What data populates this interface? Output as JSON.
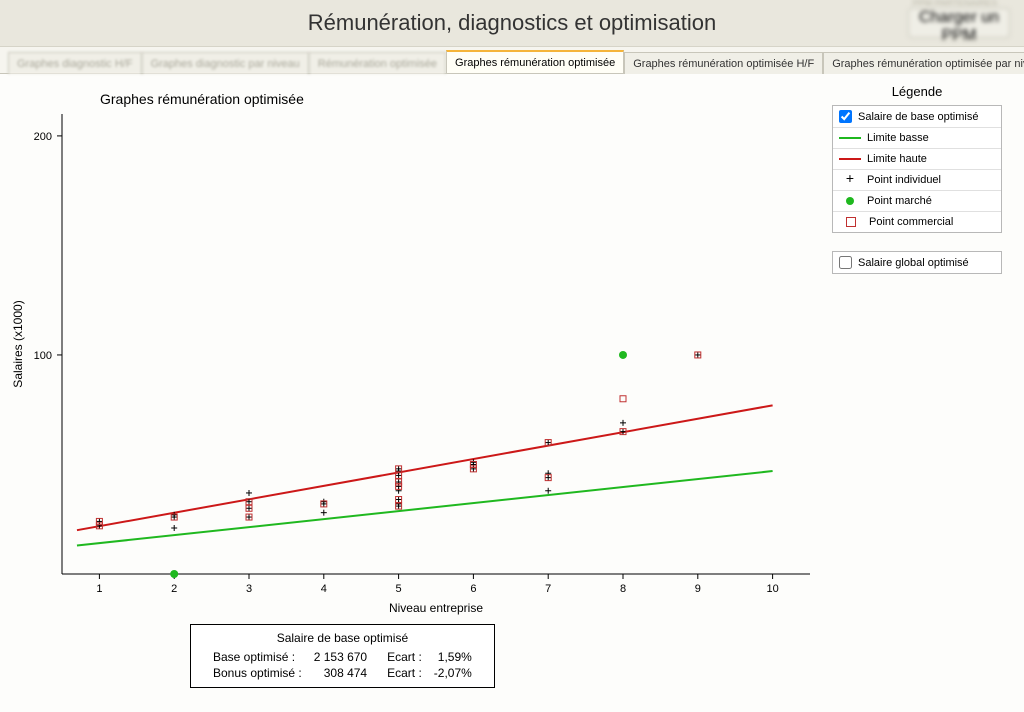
{
  "header": {
    "title": "Rémunération, diagnostics et optimisation",
    "blurred_right_label": "PPM PARTENAIRES",
    "blurred_button": "Charger un PPM"
  },
  "tabs": {
    "items": [
      {
        "label": "Graphes diagnostic H/F",
        "dim": true
      },
      {
        "label": "Graphes diagnostic par niveau",
        "dim": true
      },
      {
        "label": "Rémunération optimisée",
        "dim": true
      },
      {
        "label": "Graphes rémunération optimisée",
        "active": true
      },
      {
        "label": "Graphes rémunération optimisée H/F"
      },
      {
        "label": "Graphes rémunération optimisée par niveau"
      }
    ],
    "close_glyph": "✕"
  },
  "chart": {
    "type": "scatter-with-lines",
    "title": "Graphes rémunération optimisée",
    "xlabel": "Niveau entreprise",
    "ylabel": "Salaires (x1000)",
    "xlim": [
      0.5,
      10.5
    ],
    "ylim": [
      0,
      210
    ],
    "xticks": [
      1,
      2,
      3,
      4,
      5,
      6,
      7,
      8,
      9,
      10
    ],
    "yticks": [
      100,
      200
    ],
    "background_color": "#ffffff",
    "axis_color": "#000000",
    "title_fontsize": 14,
    "label_fontsize": 12,
    "tick_fontsize": 11,
    "line_low": {
      "color": "#1fb81f",
      "width": 2,
      "x1": 0.7,
      "y1": 13,
      "x2": 10,
      "y2": 47
    },
    "line_high": {
      "color": "#cc1818",
      "width": 2,
      "x1": 0.7,
      "y1": 20,
      "x2": 10,
      "y2": 77
    },
    "scatter_plus": {
      "color": "#000000",
      "size": 6,
      "points": [
        [
          1,
          22
        ],
        [
          1,
          24
        ],
        [
          2,
          21
        ],
        [
          2,
          26
        ],
        [
          2,
          27
        ],
        [
          3,
          26
        ],
        [
          3,
          30
        ],
        [
          3,
          33
        ],
        [
          3,
          37
        ],
        [
          4,
          28
        ],
        [
          4,
          32
        ],
        [
          4,
          33
        ],
        [
          5,
          31
        ],
        [
          5,
          32
        ],
        [
          5,
          34
        ],
        [
          5,
          38
        ],
        [
          5,
          40
        ],
        [
          5,
          42
        ],
        [
          5,
          45
        ],
        [
          5,
          47
        ],
        [
          5,
          48
        ],
        [
          6,
          48
        ],
        [
          6,
          50
        ],
        [
          6,
          51
        ],
        [
          7,
          38
        ],
        [
          7,
          44
        ],
        [
          7,
          46
        ],
        [
          7,
          60
        ],
        [
          8,
          65
        ],
        [
          8,
          69
        ],
        [
          9,
          100
        ]
      ]
    },
    "scatter_square": {
      "stroke": "#c03030",
      "size": 6,
      "points": [
        [
          1,
          22
        ],
        [
          1,
          24
        ],
        [
          2,
          26
        ],
        [
          3,
          26
        ],
        [
          3,
          30
        ],
        [
          3,
          33
        ],
        [
          4,
          32
        ],
        [
          5,
          31
        ],
        [
          5,
          34
        ],
        [
          5,
          40
        ],
        [
          5,
          42
        ],
        [
          5,
          45
        ],
        [
          5,
          48
        ],
        [
          6,
          48
        ],
        [
          6,
          50
        ],
        [
          7,
          44
        ],
        [
          7,
          60
        ],
        [
          8,
          65
        ],
        [
          8,
          80
        ],
        [
          9,
          100
        ]
      ]
    },
    "scatter_dot": {
      "fill": "#1fb81f",
      "r": 4,
      "points": [
        [
          2,
          0
        ],
        [
          8,
          100
        ]
      ]
    }
  },
  "legend": {
    "title": "Légende",
    "group1": {
      "checkbox_label": "Salaire de base optimisé",
      "checked": true,
      "items": [
        {
          "kind": "line",
          "color": "#1fb81f",
          "label": "Limite basse"
        },
        {
          "kind": "line",
          "color": "#cc1818",
          "label": "Limite haute"
        },
        {
          "kind": "plus",
          "color": "#000000",
          "label": "Point individuel"
        },
        {
          "kind": "dot",
          "color": "#1fb81f",
          "label": "Point marché"
        },
        {
          "kind": "square",
          "color": "#c03030",
          "label": "Point commercial"
        }
      ]
    },
    "group2": {
      "checkbox_label": "Salaire global optimisé",
      "checked": false
    }
  },
  "summary": {
    "title": "Salaire de base optimisé",
    "rows": [
      {
        "label": "Base optimisé :",
        "value": "2 153 670",
        "ecart_lbl": "Ecart :",
        "ecart": "1,59%"
      },
      {
        "label": "Bonus optimisé :",
        "value": "308 474",
        "ecart_lbl": "Ecart :",
        "ecart": "-2,07%"
      }
    ]
  }
}
